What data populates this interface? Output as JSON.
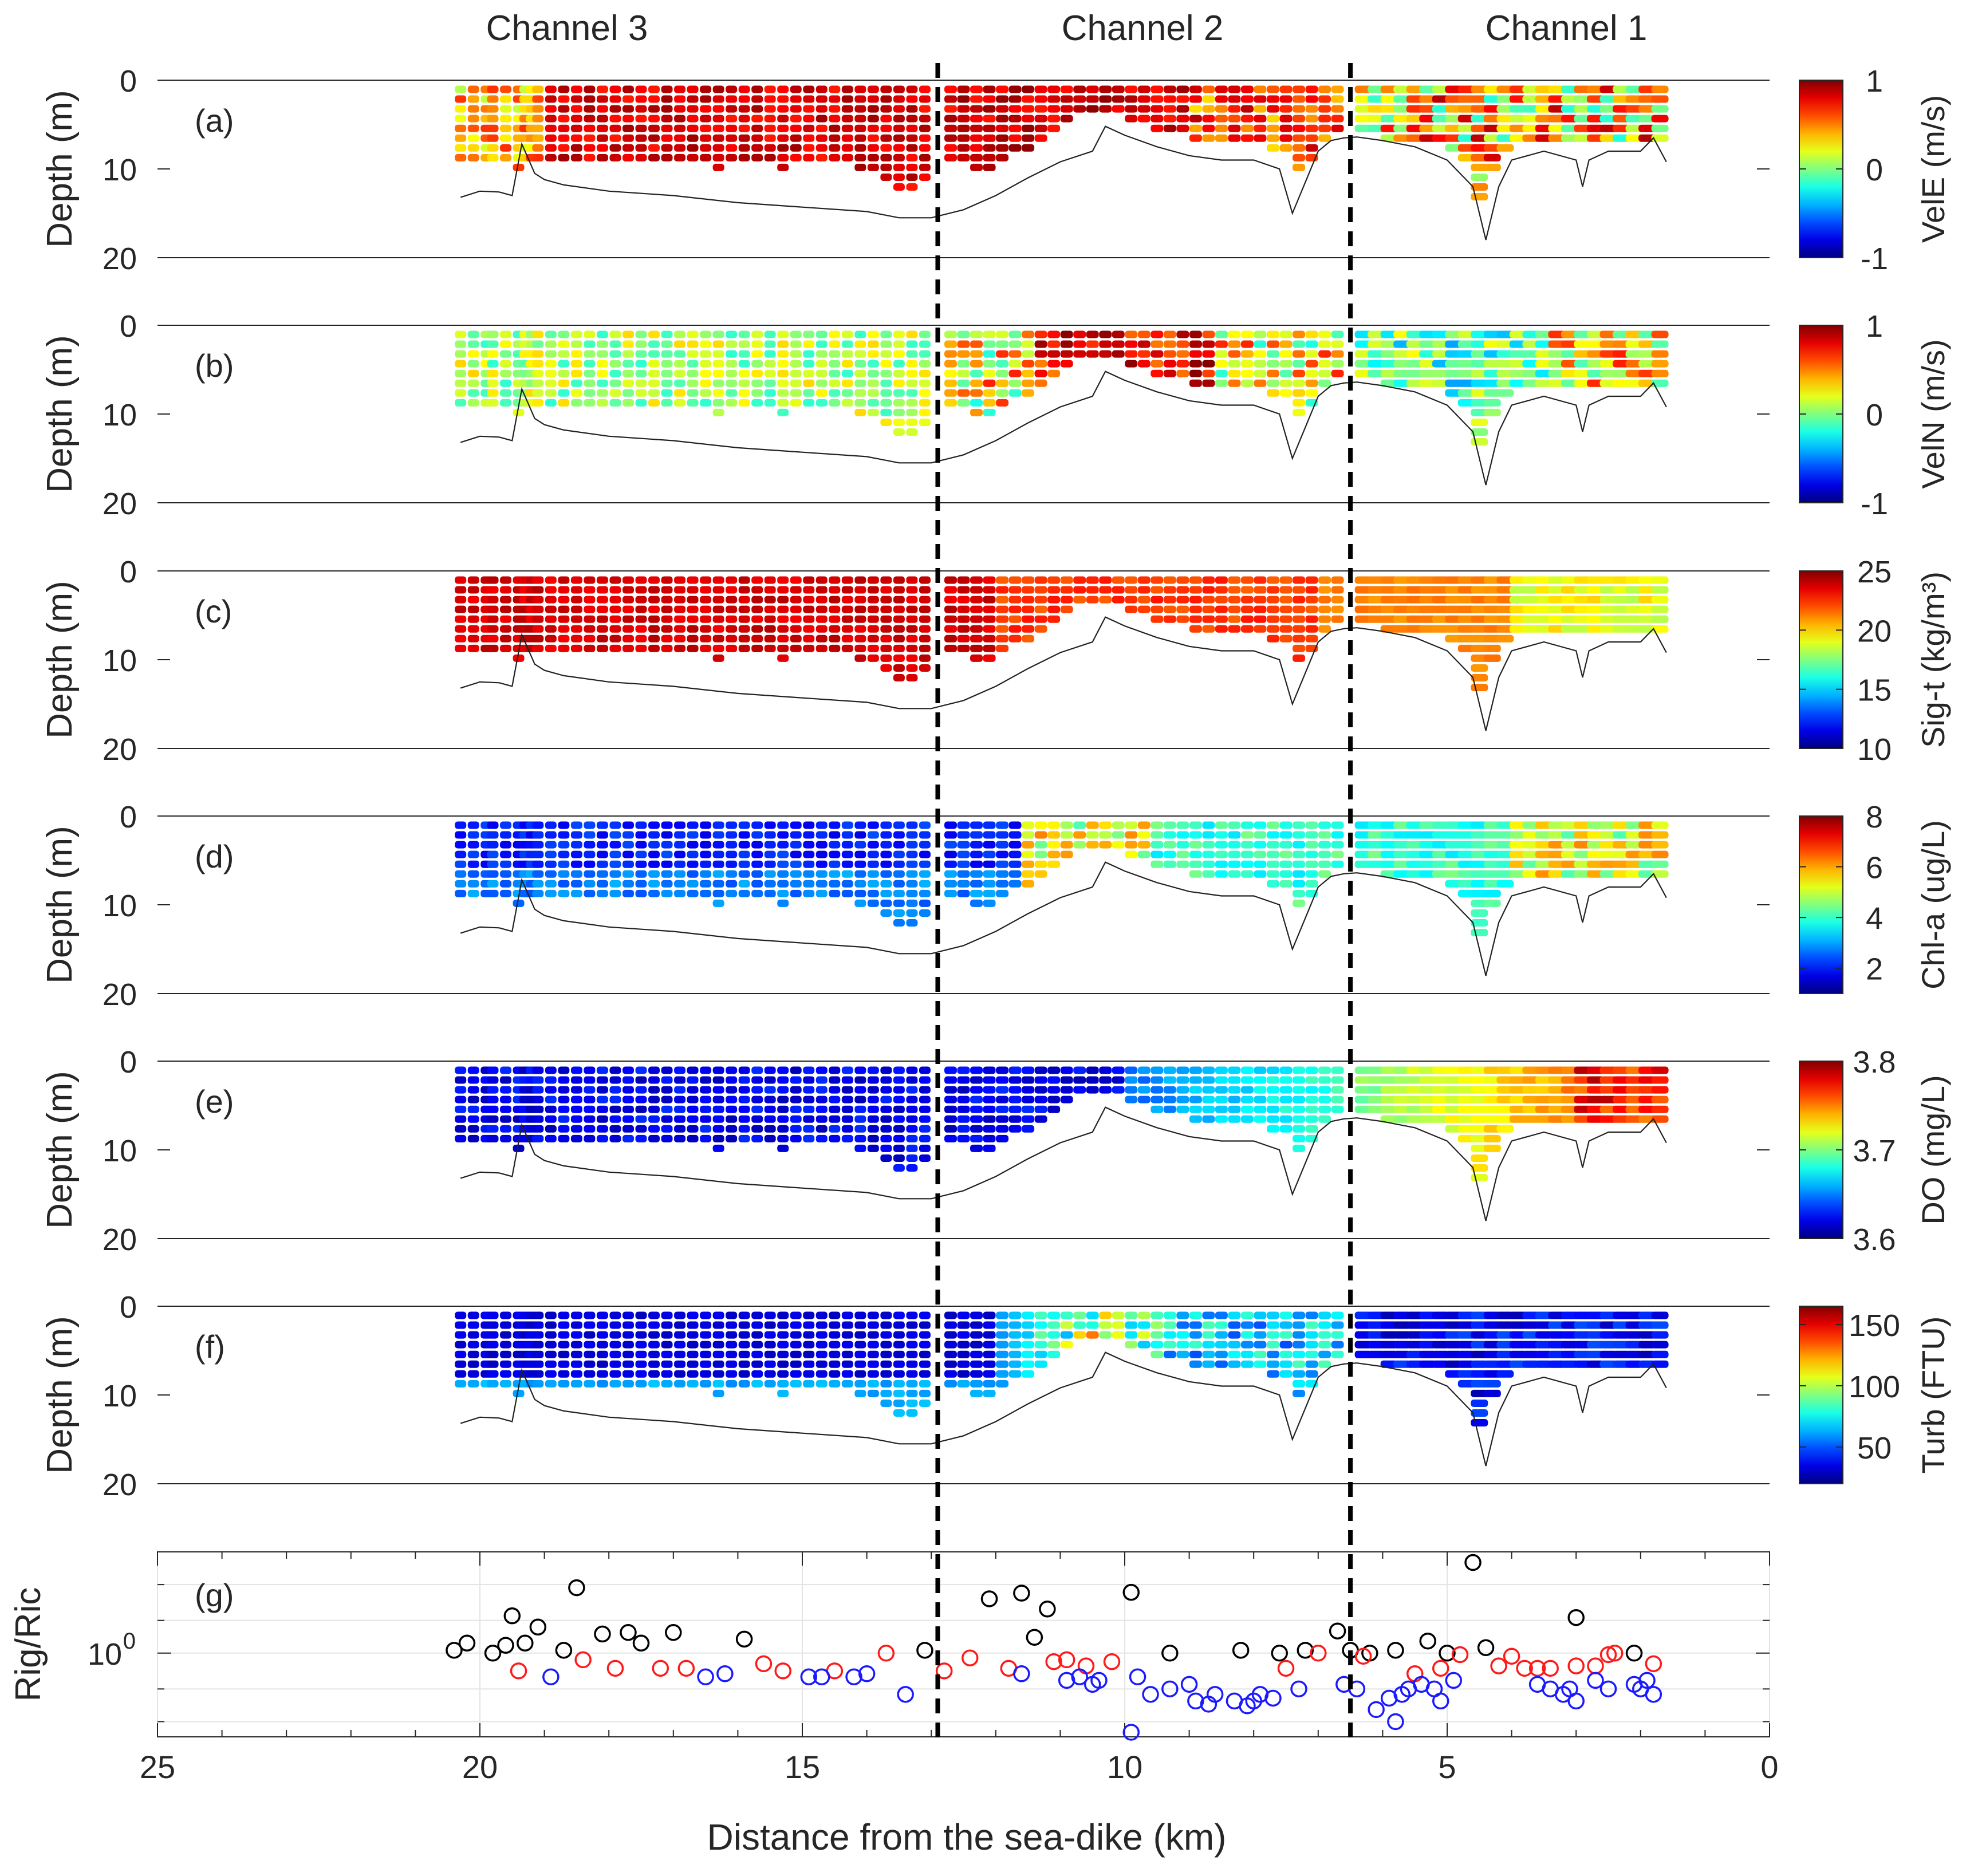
{
  "chart_data": {
    "type": "scatter",
    "xlabel": "Distance from the sea-dike (km)",
    "xlim": [
      25,
      0
    ],
    "xticks": [
      "25",
      "20",
      "15",
      "10",
      "5",
      "0"
    ],
    "channel_labels": [
      "Channel 3",
      "Channel 2",
      "Channel 1"
    ],
    "channel_boundaries_km": [
      12.9,
      6.5
    ],
    "panels": [
      {
        "label": "(a)",
        "ylabel": "Depth (m)",
        "yticks": [
          "0",
          "10",
          "20"
        ],
        "cbar_label": "VelE (m/s)",
        "cbar_ticks": [
          "1",
          "0",
          "-1"
        ],
        "cmin": -1,
        "cmax": 1
      },
      {
        "label": "(b)",
        "ylabel": "Depth (m)",
        "yticks": [
          "0",
          "10",
          "20"
        ],
        "cbar_label": "VelN (m/s)",
        "cbar_ticks": [
          "1",
          "0",
          "-1"
        ],
        "cmin": -1,
        "cmax": 1
      },
      {
        "label": "(c)",
        "ylabel": "Depth (m)",
        "yticks": [
          "0",
          "10",
          "20"
        ],
        "cbar_label": "Sig-t (kg/m³)",
        "cbar_ticks": [
          "25",
          "20",
          "15",
          "10"
        ],
        "cmin": 10,
        "cmax": 25
      },
      {
        "label": "(d)",
        "ylabel": "Depth (m)",
        "yticks": [
          "0",
          "10",
          "20"
        ],
        "cbar_label": "Chl-a (ug/L)",
        "cbar_ticks": [
          "8",
          "6",
          "4",
          "2"
        ],
        "cmin": 1,
        "cmax": 8
      },
      {
        "label": "(e)",
        "ylabel": "Depth (m)",
        "yticks": [
          "0",
          "10",
          "20"
        ],
        "cbar_label": "DO (mg/L)",
        "cbar_ticks": [
          "3.8",
          "3.7",
          "3.6"
        ],
        "cmin": 3.6,
        "cmax": 3.8
      },
      {
        "label": "(f)",
        "ylabel": "Depth (m)",
        "yticks": [
          "0",
          "10",
          "20"
        ],
        "cbar_label": "Turb (FTU)",
        "cbar_ticks": [
          "150",
          "100",
          "50"
        ],
        "cmin": 20,
        "cmax": 165
      }
    ],
    "bathymetry": {
      "x": [
        20.3,
        20.0,
        19.7,
        19.5,
        19.35,
        19.3,
        19.15,
        19.0,
        18.7,
        18.0,
        17.0,
        16.0,
        15.0,
        14.0,
        13.5,
        13.0,
        12.5,
        12.0,
        11.5,
        11.0,
        10.5,
        10.3,
        10.0,
        9.5,
        9.0,
        8.5,
        8.0,
        7.6,
        7.4,
        7.2,
        7.0,
        6.8,
        6.6,
        6.4,
        6.0,
        5.5,
        5.0,
        4.6,
        4.4,
        4.2,
        4.0,
        3.5,
        3.0,
        2.9,
        2.8,
        2.5,
        2.0,
        1.8,
        1.6
      ],
      "depth": [
        13.2,
        12.5,
        12.6,
        13.0,
        7.2,
        8.0,
        10.5,
        11.2,
        11.8,
        12.5,
        13.0,
        13.8,
        14.3,
        14.8,
        15.5,
        15.5,
        14.6,
        13.0,
        11.0,
        9.2,
        8.0,
        5.2,
        6.2,
        7.5,
        8.5,
        9.0,
        9.0,
        10.0,
        15.0,
        11.5,
        8.0,
        6.8,
        6.5,
        6.4,
        6.8,
        7.5,
        9.0,
        12.0,
        18.0,
        12.0,
        9.0,
        8.0,
        9.0,
        12.0,
        9.0,
        8.0,
        8.0,
        6.5,
        9.2
      ]
    },
    "casts": {
      "x": [
        20.3,
        20.1,
        19.9,
        19.8,
        19.6,
        19.4,
        19.3,
        19.2,
        19.1,
        18.9,
        18.7,
        18.5,
        18.3,
        18.1,
        17.9,
        17.7,
        17.5,
        17.3,
        17.1,
        16.9,
        16.7,
        16.5,
        16.3,
        16.1,
        15.9,
        15.7,
        15.5,
        15.3,
        15.1,
        14.9,
        14.7,
        14.5,
        14.3,
        14.1,
        13.9,
        13.7,
        13.5,
        13.3,
        13.1,
        12.7,
        12.5,
        12.3,
        12.1,
        11.9,
        11.7,
        11.5,
        11.3,
        11.1,
        10.9,
        10.7,
        10.5,
        10.3,
        10.1,
        9.9,
        9.7,
        9.5,
        9.3,
        9.1,
        8.9,
        8.7,
        8.5,
        8.3,
        8.1,
        7.9,
        7.7,
        7.5,
        7.3,
        7.1,
        6.9,
        6.7,
        6.3,
        6.1,
        5.9,
        5.7,
        5.5,
        5.3,
        5.1,
        4.9,
        4.7,
        4.5,
        4.3,
        4.1,
        3.9,
        3.7,
        3.5,
        3.3,
        3.1,
        2.9,
        2.7,
        2.5,
        2.3,
        2.1,
        1.9,
        1.7
      ],
      "bottom_depth": [
        9,
        9,
        9,
        9.5,
        9.5,
        10.5,
        9,
        9,
        9,
        9,
        9,
        9,
        9,
        9,
        9,
        9,
        9,
        9,
        9.5,
        9,
        9.5,
        9.5,
        10,
        9.5,
        9.5,
        9.5,
        9.5,
        10,
        9.5,
        9.5,
        9,
        9.5,
        9.5,
        10,
        10.5,
        11.5,
        12,
        12.5,
        11.5,
        9.5,
        9.5,
        10,
        10,
        9,
        8.5,
        8,
        7,
        6,
        5,
        4,
        3.5,
        3.5,
        4,
        4.5,
        5,
        5.5,
        6,
        6.5,
        7,
        7,
        7,
        7.5,
        7.5,
        7.5,
        8,
        8.5,
        10,
        9,
        7.5,
        6,
        6,
        6.5,
        7,
        7,
        7,
        7.5,
        7.5,
        8,
        9,
        14,
        10,
        8,
        7.5,
        7.5,
        7.5,
        7.5,
        7.5,
        7.5,
        7.5,
        7.5,
        7.5,
        7.5,
        7,
        7
      ]
    },
    "ri_panel": {
      "label": "(g)",
      "ylabel": "Rig/Ric",
      "yscale": "log",
      "ytick_label": "10",
      "ytick_exp": "0",
      "ylim": [
        0.06,
        30
      ],
      "series": [
        {
          "name": "black",
          "color": "#000000",
          "x": [
            20.4,
            20.2,
            19.8,
            19.6,
            19.5,
            19.3,
            19.1,
            18.7,
            18.5,
            18.1,
            17.7,
            17.5,
            17.0,
            15.9,
            13.1,
            12.1,
            11.6,
            11.4,
            11.2,
            9.9,
            9.3,
            8.2,
            7.6,
            7.2,
            6.7,
            6.5,
            6.2,
            5.8,
            5.3,
            5.0,
            4.6,
            4.4,
            3.0,
            2.1
          ],
          "y": [
            1.1,
            1.4,
            1.0,
            1.3,
            3.5,
            1.4,
            2.4,
            1.1,
            9.0,
            1.9,
            2.0,
            1.4,
            2.0,
            1.6,
            1.1,
            6.2,
            7.5,
            1.7,
            4.4,
            7.7,
            1.0,
            1.1,
            1.0,
            1.1,
            2.1,
            1.1,
            1.0,
            1.1,
            1.5,
            1.0,
            21.0,
            1.2,
            3.3,
            1.0
          ]
        },
        {
          "name": "red",
          "color": "#ff1a1a",
          "x": [
            19.4,
            18.4,
            17.9,
            17.2,
            16.8,
            15.6,
            15.3,
            14.5,
            13.7,
            12.8,
            12.4,
            11.8,
            11.1,
            10.9,
            10.6,
            10.2,
            7.5,
            7.0,
            6.3,
            5.5,
            5.1,
            4.8,
            4.2,
            4.0,
            3.8,
            3.6,
            3.4,
            3.0,
            2.7,
            2.5,
            2.4,
            1.8
          ],
          "y": [
            0.55,
            0.8,
            0.6,
            0.6,
            0.6,
            0.7,
            0.55,
            0.55,
            1.0,
            0.55,
            0.85,
            0.6,
            0.75,
            0.8,
            0.65,
            0.75,
            0.6,
            1.0,
            0.9,
            0.5,
            0.6,
            0.95,
            0.65,
            0.9,
            0.6,
            0.6,
            0.6,
            0.65,
            0.65,
            0.95,
            1.0,
            0.7
          ]
        },
        {
          "name": "blue",
          "color": "#1a1aff",
          "x": [
            18.9,
            16.5,
            16.2,
            14.9,
            14.7,
            14.2,
            14.0,
            13.4,
            11.6,
            10.9,
            10.7,
            10.5,
            10.4,
            9.9,
            9.8,
            9.6,
            9.3,
            9.0,
            8.9,
            8.7,
            8.6,
            8.3,
            8.1,
            8.0,
            7.9,
            7.7,
            7.3,
            6.6,
            6.4,
            6.1,
            5.9,
            5.8,
            5.7,
            5.6,
            5.4,
            5.2,
            5.1,
            4.9,
            3.6,
            3.4,
            3.2,
            3.1,
            3.0,
            2.7,
            2.5,
            2.1,
            2.0,
            1.9,
            1.8
          ],
          "y": [
            0.45,
            0.45,
            0.5,
            0.45,
            0.45,
            0.45,
            0.5,
            0.25,
            0.5,
            0.4,
            0.45,
            0.35,
            0.4,
            0.07,
            0.45,
            0.25,
            0.3,
            0.35,
            0.2,
            0.18,
            0.25,
            0.2,
            0.17,
            0.2,
            0.25,
            0.22,
            0.3,
            0.35,
            0.3,
            0.15,
            0.22,
            0.1,
            0.25,
            0.3,
            0.35,
            0.3,
            0.2,
            0.4,
            0.35,
            0.3,
            0.25,
            0.3,
            0.2,
            0.4,
            0.3,
            0.35,
            0.3,
            0.4,
            0.25
          ]
        }
      ]
    }
  }
}
